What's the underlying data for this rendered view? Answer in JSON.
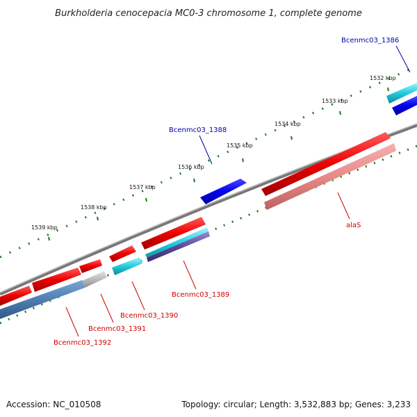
{
  "title": "Burkholderia cenocepacia MC0-3 chromosome 1, complete genome",
  "footer": {
    "accession": "Accession: NC_010508",
    "stats": "Topology: circular; Length: 3,532,883 bp; Genes: 3,233"
  },
  "ticks": [
    "1532 kbp",
    "1533 kbp",
    "1534 kbp",
    "1535 kbp",
    "1536 kbp",
    "1537 kbp",
    "1538 kbp",
    "1539 kbp"
  ],
  "genes": {
    "bcenmc03_1386": "Bcenmc03_1386",
    "bcenmc03_1388": "Bcenmc03_1388",
    "alaS": "alaS",
    "bcenmc03_1389": "Bcenmc03_1389",
    "bcenmc03_1390": "Bcenmc03_1390",
    "bcenmc03_1391": "Bcenmc03_1391",
    "bcenmc03_1392": "Bcenmc03_1392"
  },
  "colors": {
    "forward_cds": "#ee0000",
    "reverse_cds": "#0000ee",
    "backbone": "#888888",
    "tick_mark": "#1a7a1a",
    "feature_cyan": "#22ccdd",
    "feature_pink": "#e88a8a",
    "feature_steel": "#4f7fb0",
    "feature_grey": "#bbbbbb"
  }
}
